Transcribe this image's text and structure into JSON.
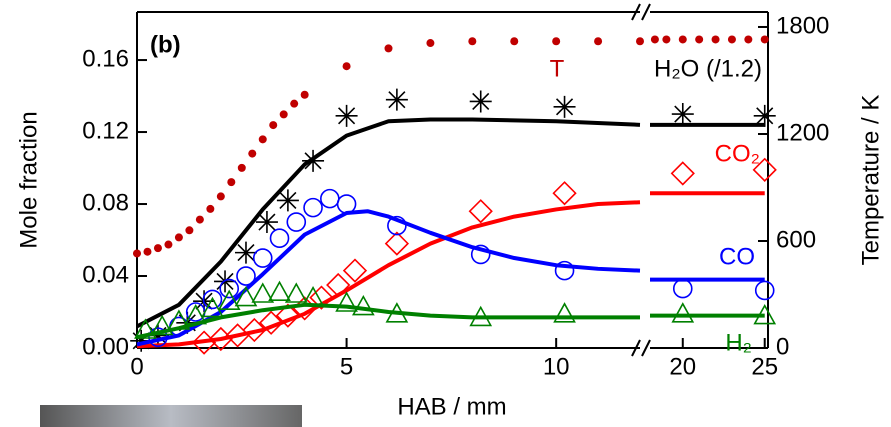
{
  "chart_data": {
    "type": "scatter",
    "panel_label": "(b)",
    "xlabel": "HAB / mm",
    "ylabel": "Mole fraction",
    "y2label": "Temperature / K",
    "xlim": [
      0,
      25.2
    ],
    "xbreak": [
      12,
      18
    ],
    "xticks": [
      0,
      5,
      10,
      20,
      25
    ],
    "ylim": [
      0,
      0.1867
    ],
    "yticks": [
      {
        "value": 0,
        "label": "0.00"
      },
      0.04,
      0.08,
      0.12,
      0.16
    ],
    "y2lim": [
      0,
      1884
    ],
    "y2ticks": [
      0,
      600,
      1200,
      1800
    ],
    "series": [
      {
        "name": "T",
        "color": "#c00000",
        "marker": "dot",
        "axis": "y2",
        "x": [
          0,
          0.25,
          0.5,
          0.75,
          1,
          1.25,
          1.5,
          1.75,
          2,
          2.25,
          2.5,
          2.75,
          3,
          3.25,
          3.5,
          3.75,
          4,
          5,
          6,
          7,
          8,
          9,
          10,
          11,
          12,
          18.3,
          19,
          20,
          21,
          22,
          23,
          24,
          25
        ],
        "values": [
          530,
          540,
          560,
          580,
          620,
          660,
          720,
          780,
          850,
          930,
          1010,
          1090,
          1170,
          1250,
          1310,
          1370,
          1420,
          1580,
          1680,
          1710,
          1720,
          1720,
          1720,
          1720,
          1720,
          1730,
          1730,
          1730,
          1730,
          1730,
          1730,
          1730,
          1730
        ]
      },
      {
        "name": "H₂O (/1.2)",
        "color": "#000000",
        "marker": "asterisk",
        "x": [
          0.1,
          0.5,
          1.2,
          1.6,
          2.1,
          2.6,
          3.1,
          3.6,
          4.2,
          5.0,
          6.2,
          8.2,
          10.2,
          20,
          25
        ],
        "values": [
          0.004,
          0.007,
          0.014,
          0.026,
          0.037,
          0.053,
          0.07,
          0.082,
          0.104,
          0.129,
          0.138,
          0.137,
          0.134,
          0.13,
          0.129
        ],
        "fit": {
          "x": [
            0,
            1,
            2,
            3,
            4,
            5,
            6,
            7,
            8,
            10,
            12,
            18,
            25
          ],
          "values": [
            0.012,
            0.024,
            0.048,
            0.077,
            0.102,
            0.118,
            0.126,
            0.127,
            0.127,
            0.126,
            0.124,
            0.124,
            0.124
          ]
        }
      },
      {
        "name": "CO₂",
        "color": "#ff0000",
        "marker": "diamond",
        "x": [
          1.6,
          2.0,
          2.4,
          2.8,
          3.2,
          3.6,
          4.0,
          4.4,
          4.8,
          5.2,
          6.2,
          8.2,
          10.2,
          20,
          25
        ],
        "values": [
          0.003,
          0.005,
          0.007,
          0.01,
          0.014,
          0.018,
          0.022,
          0.028,
          0.035,
          0.043,
          0.058,
          0.076,
          0.086,
          0.097,
          0.099
        ],
        "fit": {
          "x": [
            0,
            1,
            2,
            3,
            4,
            5,
            6,
            7,
            8,
            9,
            10,
            11,
            12,
            18,
            25
          ],
          "values": [
            0.001,
            0.002,
            0.005,
            0.01,
            0.019,
            0.032,
            0.046,
            0.058,
            0.067,
            0.073,
            0.077,
            0.08,
            0.081,
            0.086,
            0.086
          ]
        }
      },
      {
        "name": "CO",
        "color": "#0000ff",
        "marker": "circle",
        "x": [
          0.5,
          1.0,
          1.4,
          1.8,
          2.2,
          2.6,
          3.0,
          3.4,
          3.8,
          4.2,
          4.6,
          5.0,
          6.2,
          8.2,
          10.2,
          20,
          25
        ],
        "values": [
          0.006,
          0.012,
          0.02,
          0.027,
          0.033,
          0.04,
          0.05,
          0.061,
          0.07,
          0.078,
          0.083,
          0.08,
          0.068,
          0.052,
          0.043,
          0.033,
          0.032
        ],
        "fit": {
          "x": [
            0,
            1,
            2,
            3,
            4,
            5,
            5.5,
            6,
            7,
            8,
            9,
            10,
            11,
            12,
            18,
            25
          ],
          "values": [
            0.002,
            0.007,
            0.02,
            0.041,
            0.063,
            0.075,
            0.076,
            0.073,
            0.064,
            0.056,
            0.05,
            0.046,
            0.044,
            0.043,
            0.038,
            0.038
          ]
        }
      },
      {
        "name": "H₂",
        "color": "#008000",
        "marker": "triangle",
        "x": [
          0.2,
          0.6,
          1.0,
          1.4,
          1.8,
          2.2,
          2.6,
          3.0,
          3.4,
          3.8,
          4.2,
          5.0,
          5.4,
          6.2,
          8.2,
          10.2,
          20,
          25
        ],
        "values": [
          0.01,
          0.012,
          0.015,
          0.018,
          0.022,
          0.026,
          0.028,
          0.03,
          0.031,
          0.03,
          0.028,
          0.025,
          0.023,
          0.019,
          0.017,
          0.019,
          0.019,
          0.018
        ],
        "fit": {
          "x": [
            0,
            1,
            2,
            3,
            4,
            5,
            6,
            7,
            8,
            10,
            12,
            18,
            25
          ],
          "values": [
            0.006,
            0.011,
            0.017,
            0.021,
            0.024,
            0.023,
            0.02,
            0.018,
            0.017,
            0.017,
            0.017,
            0.018,
            0.018
          ]
        }
      }
    ]
  }
}
